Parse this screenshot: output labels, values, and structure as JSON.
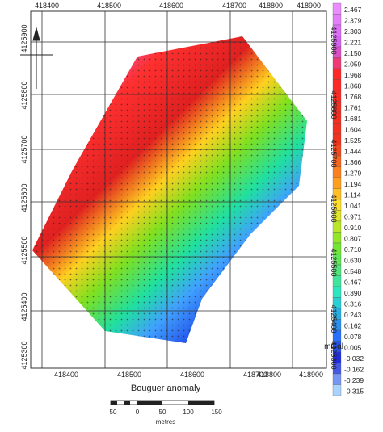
{
  "map": {
    "x_labels_top": [
      "418400",
      "418500",
      "418600",
      "418700",
      "418800",
      "418900"
    ],
    "x_labels_bottom": [
      "418400",
      "418500",
      "418600",
      "418700",
      "418800",
      "418900"
    ],
    "y_labels_left": [
      "4125900",
      "4125800",
      "4125700",
      "4125600",
      "4125500",
      "4125400",
      "4125300"
    ],
    "y_labels_right": [
      "4125900",
      "4125800",
      "4125700",
      "4125600",
      "4125500",
      "4125400",
      "4125300"
    ],
    "caption": "Bouguer anomaly"
  },
  "colorbar": {
    "labels": [
      "2.467",
      "2.379",
      "2.303",
      "2.221",
      "2.150",
      "2.059",
      "1.968",
      "1.868",
      "1.768",
      "1.761",
      "1.681",
      "1.604",
      "1.525",
      "1.444",
      "1.366",
      "1.279",
      "1.194",
      "1.114",
      "1.041",
      "0.971",
      "0.910",
      "0.807",
      "0.710",
      "0.630",
      "0.548",
      "0.467",
      "0.390",
      "0.316",
      "0.243",
      "0.162",
      "0.078",
      "0.005",
      "-0.032",
      "-0.162",
      "-0.239",
      "-0.315"
    ],
    "unit": "mGal"
  },
  "scale_bar": {
    "labels": [
      "50",
      "0",
      "50",
      "100",
      "150"
    ],
    "unit": "metres"
  }
}
